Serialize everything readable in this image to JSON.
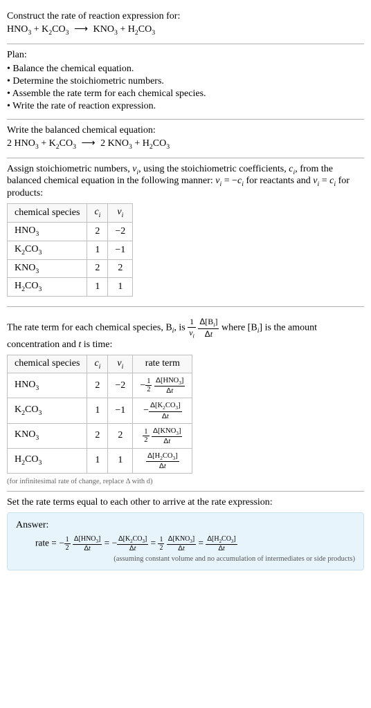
{
  "intro": {
    "heading": "Construct the rate of reaction expression for:"
  },
  "plan": {
    "heading": "Plan:",
    "items": [
      "Balance the chemical equation.",
      "Determine the stoichiometric numbers.",
      "Assemble the rate term for each chemical species.",
      "Write the rate of reaction expression."
    ]
  },
  "balanced": {
    "heading": "Write the balanced chemical equation:"
  },
  "stoich": {
    "intro_a": "Assign stoichiometric numbers, ",
    "intro_b": ", using the stoichiometric coefficients, ",
    "intro_c": ", from the balanced chemical equation in the following manner: ",
    "intro_d": " for reactants and ",
    "intro_e": " for products:",
    "headers": {
      "species": "chemical species",
      "ci": "c",
      "vi": "ν"
    },
    "rows": [
      {
        "c": "2",
        "v": "−2"
      },
      {
        "c": "1",
        "v": "−1"
      },
      {
        "c": "2",
        "v": "2"
      },
      {
        "c": "1",
        "v": "1"
      }
    ]
  },
  "rateterm": {
    "intro_a": "The rate term for each chemical species, B",
    "intro_b": ", is ",
    "intro_c": " where [B",
    "intro_d": "] is the amount concentration and ",
    "intro_e": " is time:",
    "headers": {
      "species": "chemical species",
      "ci": "c",
      "vi": "ν",
      "rate": "rate term"
    },
    "rows": [
      {
        "c": "2",
        "v": "−2"
      },
      {
        "c": "1",
        "v": "−1"
      },
      {
        "c": "2",
        "v": "2"
      },
      {
        "c": "1",
        "v": "1"
      }
    ],
    "note": "(for infinitesimal rate of change, replace Δ with d)"
  },
  "final": {
    "heading": "Set the rate terms equal to each other to arrive at the rate expression:"
  },
  "answer": {
    "label": "Answer:",
    "rate_word": "rate",
    "note": "(assuming constant volume and no accumulation of intermediates or side products)"
  }
}
